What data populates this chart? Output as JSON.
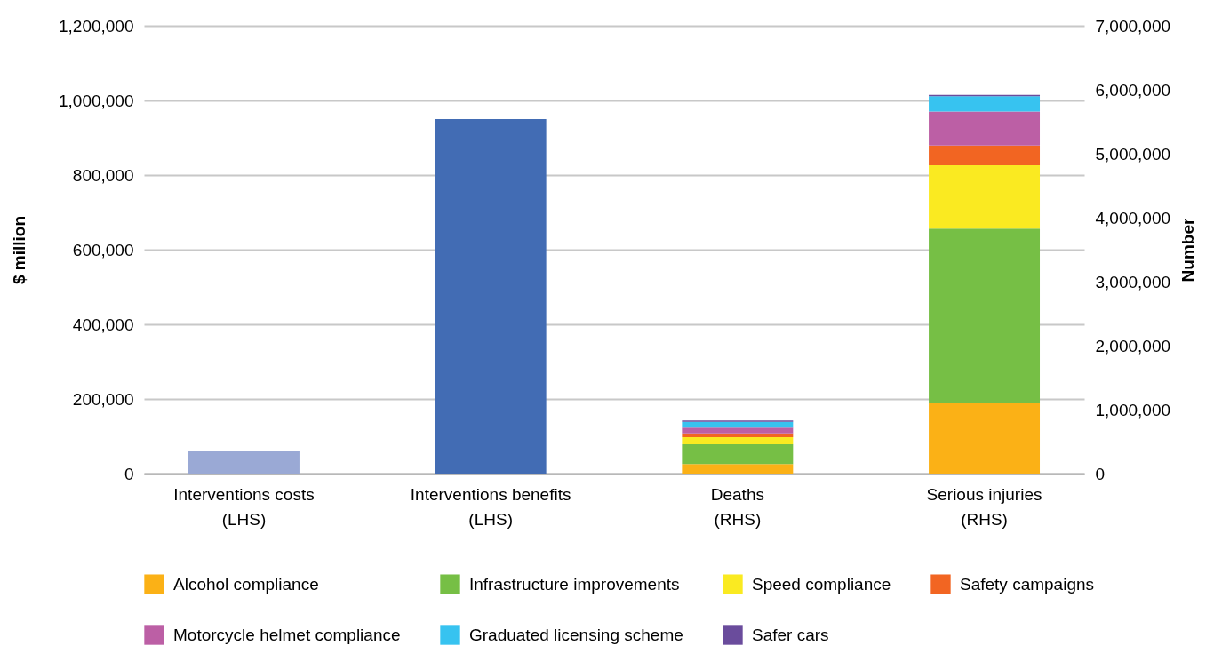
{
  "chart_data": {
    "type": "bar",
    "categories": [
      "Interventions costs\n(LHS)",
      "Interventions benefits\n(LHS)",
      "Deaths\n(RHS)",
      "Serious injuries\n(RHS)"
    ],
    "ylabel": "$ million",
    "y2label": "Number",
    "ylim": [
      0,
      1200000
    ],
    "yticks": [
      0,
      {
        "value": 200000,
        "label": "200,000"
      },
      {
        "value": 400000,
        "label": "400,000"
      },
      {
        "value": 600000,
        "label": "600,000"
      },
      {
        "value": 800000,
        "label": "800,000"
      },
      {
        "value": 1000000,
        "label": "1,000,000"
      },
      {
        "value": 1200000,
        "label": "1,200,000"
      }
    ],
    "y2lim": [
      0,
      7000000
    ],
    "y2ticks": [
      0,
      {
        "value": 1000000,
        "label": "1,000,000"
      },
      {
        "value": 2000000,
        "label": "2,000,000"
      },
      {
        "value": 3000000,
        "label": "3,000,000"
      },
      {
        "value": 4000000,
        "label": "4,000,000"
      },
      {
        "value": 5000000,
        "label": "5,000,000"
      },
      {
        "value": 6000000,
        "label": "6,000,000"
      },
      {
        "value": 7000000,
        "label": "7,000,000"
      }
    ],
    "stacked": true,
    "grid": "y",
    "legend": "bottom",
    "series": [
      {
        "color": "#9aa9d5",
        "values": [
          60000,
          null,
          null,
          null
        ]
      },
      {
        "color": "#426cb4",
        "values": [
          null,
          950000,
          null,
          null
        ]
      },
      {
        "name": "Alcohol compliance",
        "color": "#fbb116",
        "axis": "y2",
        "values": [
          null,
          null,
          150000,
          1100000
        ]
      },
      {
        "name": "Infrastructure improvements",
        "color": "#76bf45",
        "axis": "y2",
        "values": [
          null,
          null,
          310000,
          2730000
        ]
      },
      {
        "name": "Speed compliance",
        "color": "#faea21",
        "axis": "y2",
        "values": [
          null,
          null,
          110000,
          990000
        ]
      },
      {
        "name": "Safety campaigns",
        "color": "#f26522",
        "axis": "y2",
        "values": [
          null,
          null,
          60000,
          310000
        ]
      },
      {
        "name": "Motorcycle helmet compliance",
        "color": "#bc5fa5",
        "axis": "y2",
        "values": [
          null,
          null,
          90000,
          530000
        ]
      },
      {
        "name": "Graduated licensing scheme",
        "color": "#37c3f0",
        "axis": "y2",
        "values": [
          null,
          null,
          90000,
          240000
        ]
      },
      {
        "name": "Safer cars",
        "color": "#6a4c9c",
        "axis": "y2",
        "values": [
          null,
          null,
          20000,
          20000
        ]
      }
    ]
  }
}
